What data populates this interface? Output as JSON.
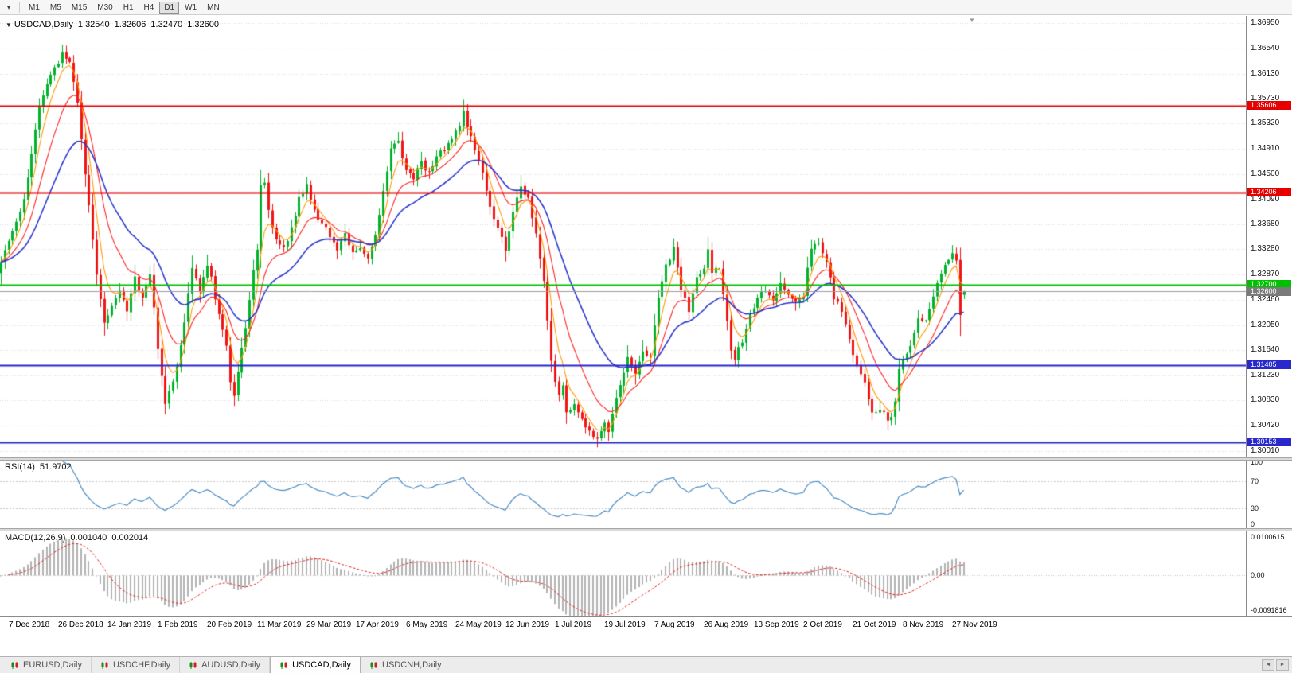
{
  "toolbar": {
    "timeframes": [
      "M1",
      "M5",
      "M15",
      "M30",
      "H1",
      "H4",
      "D1",
      "W1",
      "MN"
    ],
    "active_timeframe": "D1"
  },
  "chart": {
    "title": "USDCAD,Daily",
    "ohlc": {
      "open": "1.32540",
      "high": "1.32606",
      "low": "1.32470",
      "close": "1.32600"
    },
    "price_axis": [
      "1.36950",
      "1.36540",
      "1.36130",
      "1.35730",
      "1.35320",
      "1.34910",
      "1.34500",
      "1.34090",
      "1.33680",
      "1.33280",
      "1.32870",
      "1.32460",
      "1.32050",
      "1.31640",
      "1.31230",
      "1.30830",
      "1.30420",
      "1.30010"
    ],
    "levels": [
      {
        "label": "1.35606",
        "color": "#e60000"
      },
      {
        "label": "1.34206",
        "color": "#e60000"
      },
      {
        "label": "1.32700",
        "color": "#00c000"
      },
      {
        "label": "1.31405",
        "color": "#2828cc"
      },
      {
        "label": "1.30153",
        "color": "#2828cc"
      }
    ],
    "current_price": {
      "label": "1.32600",
      "color": "#7a7a7a"
    },
    "date_axis": [
      "7 Dec 2018",
      "26 Dec 2018",
      "14 Jan 2019",
      "1 Feb 2019",
      "20 Feb 2019",
      "11 Mar 2019",
      "29 Mar 2019",
      "17 Apr 2019",
      "6 May 2019",
      "24 May 2019",
      "12 Jun 2019",
      "1 Jul 2019",
      "19 Jul 2019",
      "7 Aug 2019",
      "26 Aug 2019",
      "13 Sep 2019",
      "2 Oct 2019",
      "21 Oct 2019",
      "8 Nov 2019",
      "27 Nov 2019"
    ]
  },
  "rsi": {
    "name": "RSI(14)",
    "value": "51.9702",
    "scale": [
      "100",
      "70",
      "30",
      "0"
    ],
    "guide_levels": [
      70,
      30
    ],
    "line_color": "#4a8bc2"
  },
  "macd": {
    "name": "MACD(12,26,9)",
    "value_main": "0.001040",
    "value_signal": "0.002014",
    "scale": [
      "0.0100615",
      "0.00",
      "-0.0091816"
    ],
    "histogram_color": "#b2b2b2",
    "signal_color": "#e02020"
  },
  "tabs": [
    {
      "label": "EURUSD,Daily",
      "active": false
    },
    {
      "label": "USDCHF,Daily",
      "active": false
    },
    {
      "label": "AUDUSD,Daily",
      "active": false
    },
    {
      "label": "USDCAD,Daily",
      "active": true
    },
    {
      "label": "USDCNH,Daily",
      "active": false
    }
  ],
  "chart_data": {
    "type": "candlestick",
    "symbol": "USDCAD",
    "timeframe": "Daily",
    "bars": 253,
    "last_ohlc": {
      "open": 1.3254,
      "high": 1.32606,
      "low": 1.3247,
      "close": 1.326
    },
    "candle_up_color": "#00b22c",
    "candle_down_color": "#f01414",
    "rsi_period": 14,
    "macd_params": {
      "fast": 12,
      "slow": 26,
      "signal": 9
    },
    "moving_averages": [
      {
        "period": 5,
        "color": "#ff9900"
      },
      {
        "period": 12,
        "color": "#ff2020"
      },
      {
        "period": 26,
        "color": "#2a35cc"
      }
    ],
    "price_anchors": [
      [
        0,
        1.331
      ],
      [
        2,
        1.334
      ],
      [
        4,
        1.337
      ],
      [
        6,
        1.341
      ],
      [
        8,
        1.348
      ],
      [
        10,
        1.356
      ],
      [
        12,
        1.3595
      ],
      [
        14,
        1.362
      ],
      [
        16,
        1.3645
      ],
      [
        18,
        1.363
      ],
      [
        19,
        1.36
      ],
      [
        20,
        1.3565
      ],
      [
        21,
        1.351
      ],
      [
        22,
        1.345
      ],
      [
        23,
        1.34
      ],
      [
        24,
        1.334
      ],
      [
        25,
        1.329
      ],
      [
        26,
        1.325
      ],
      [
        27,
        1.321
      ],
      [
        29,
        1.3235
      ],
      [
        31,
        1.326
      ],
      [
        33,
        1.323
      ],
      [
        35,
        1.328
      ],
      [
        37,
        1.325
      ],
      [
        39,
        1.329
      ],
      [
        40,
        1.323
      ],
      [
        41,
        1.317
      ],
      [
        42,
        1.312
      ],
      [
        43,
        1.308
      ],
      [
        44,
        1.3095
      ],
      [
        46,
        1.314
      ],
      [
        48,
        1.321
      ],
      [
        50,
        1.33
      ],
      [
        52,
        1.326
      ],
      [
        54,
        1.33
      ],
      [
        55,
        1.328
      ],
      [
        57,
        1.322
      ],
      [
        59,
        1.317
      ],
      [
        60,
        1.311
      ],
      [
        61,
        1.309
      ],
      [
        62,
        1.313
      ],
      [
        64,
        1.32
      ],
      [
        66,
        1.329
      ],
      [
        67,
        1.333
      ],
      [
        68,
        1.343
      ],
      [
        69,
        1.344
      ],
      [
        70,
        1.339
      ],
      [
        72,
        1.334
      ],
      [
        74,
        1.333
      ],
      [
        76,
        1.336
      ],
      [
        78,
        1.341
      ],
      [
        80,
        1.343
      ],
      [
        82,
        1.339
      ],
      [
        84,
        1.337
      ],
      [
        86,
        1.335
      ],
      [
        88,
        1.333
      ],
      [
        90,
        1.335
      ],
      [
        92,
        1.332
      ],
      [
        94,
        1.333
      ],
      [
        96,
        1.331
      ],
      [
        98,
        1.335
      ],
      [
        100,
        1.342
      ],
      [
        102,
        1.349
      ],
      [
        104,
        1.35
      ],
      [
        106,
        1.346
      ],
      [
        108,
        1.344
      ],
      [
        110,
        1.347
      ],
      [
        112,
        1.345
      ],
      [
        114,
        1.348
      ],
      [
        116,
        1.349
      ],
      [
        118,
        1.351
      ],
      [
        120,
        1.3525
      ],
      [
        121,
        1.355
      ],
      [
        122,
        1.353
      ],
      [
        124,
        1.349
      ],
      [
        126,
        1.345
      ],
      [
        128,
        1.34
      ],
      [
        130,
        1.336
      ],
      [
        132,
        1.333
      ],
      [
        134,
        1.339
      ],
      [
        136,
        1.343
      ],
      [
        138,
        1.341
      ],
      [
        140,
        1.335
      ],
      [
        142,
        1.328
      ],
      [
        143,
        1.321
      ],
      [
        144,
        1.315
      ],
      [
        145,
        1.311
      ],
      [
        146,
        1.309
      ],
      [
        147,
        1.311
      ],
      [
        148,
        1.306
      ],
      [
        150,
        1.308
      ],
      [
        152,
        1.305
      ],
      [
        154,
        1.303
      ],
      [
        156,
        1.302
      ],
      [
        158,
        1.3045
      ],
      [
        159,
        1.303
      ],
      [
        160,
        1.306
      ],
      [
        162,
        1.311
      ],
      [
        164,
        1.315
      ],
      [
        166,
        1.313
      ],
      [
        168,
        1.316
      ],
      [
        170,
        1.315
      ],
      [
        171,
        1.32
      ],
      [
        172,
        1.325
      ],
      [
        174,
        1.33
      ],
      [
        176,
        1.333
      ],
      [
        178,
        1.326
      ],
      [
        180,
        1.323
      ],
      [
        182,
        1.328
      ],
      [
        184,
        1.33
      ],
      [
        185,
        1.333
      ],
      [
        186,
        1.329
      ],
      [
        188,
        1.33
      ],
      [
        189,
        1.326
      ],
      [
        190,
        1.321
      ],
      [
        191,
        1.316
      ],
      [
        192,
        1.315
      ],
      [
        194,
        1.318
      ],
      [
        196,
        1.322
      ],
      [
        198,
        1.325
      ],
      [
        200,
        1.326
      ],
      [
        202,
        1.3245
      ],
      [
        204,
        1.327
      ],
      [
        206,
        1.325
      ],
      [
        208,
        1.3245
      ],
      [
        210,
        1.325
      ],
      [
        211,
        1.33
      ],
      [
        212,
        1.333
      ],
      [
        214,
        1.334
      ],
      [
        216,
        1.331
      ],
      [
        218,
        1.325
      ],
      [
        220,
        1.323
      ],
      [
        222,
        1.318
      ],
      [
        224,
        1.314
      ],
      [
        226,
        1.311
      ],
      [
        228,
        1.306
      ],
      [
        230,
        1.307
      ],
      [
        232,
        1.305
      ],
      [
        233,
        1.306
      ],
      [
        234,
        1.308
      ],
      [
        235,
        1.313
      ],
      [
        236,
        1.315
      ],
      [
        238,
        1.317
      ],
      [
        240,
        1.322
      ],
      [
        242,
        1.321
      ],
      [
        244,
        1.325
      ],
      [
        246,
        1.329
      ],
      [
        248,
        1.331
      ],
      [
        249,
        1.332
      ],
      [
        250,
        1.331
      ],
      [
        251,
        1.3225
      ],
      [
        252,
        1.326
      ]
    ]
  }
}
